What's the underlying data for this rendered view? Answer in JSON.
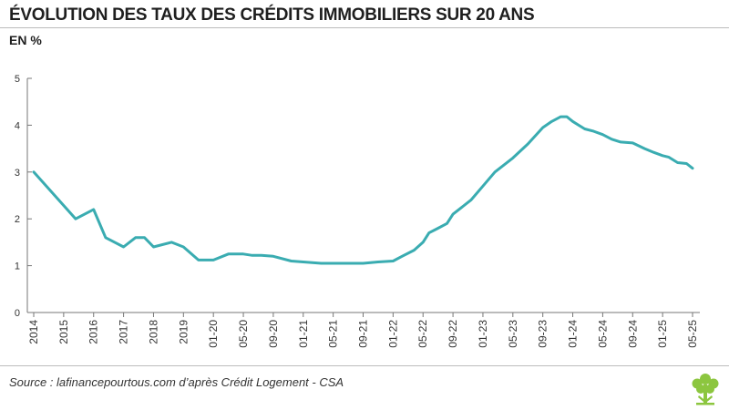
{
  "header": {
    "title": "ÉVOLUTION DES TAUX DES CRÉDITS IMMOBILIERS SUR 20 ANS",
    "unit": "EN %"
  },
  "footer": {
    "source": "Source : lafinancepourtous.com d’après Crédit Logement - CSA",
    "logo_icon": "tree-logo-icon"
  },
  "colors": {
    "line": "#3aacb1",
    "axis": "#777777",
    "logo": "#8cc63f"
  },
  "chart_data": {
    "type": "line",
    "title": "ÉVOLUTION DES TAUX DES CRÉDITS IMMOBILIERS SUR 20 ANS",
    "ylabel": "EN %",
    "ylim": [
      0,
      5
    ],
    "yticks": [
      0,
      1,
      2,
      3,
      4,
      5
    ],
    "grid": false,
    "x_ticks": [
      "2014",
      "2015",
      "2016",
      "2017",
      "2018",
      "2019",
      "01-20",
      "05-20",
      "09-20",
      "01-21",
      "05-21",
      "09-21",
      "01-22",
      "05-22",
      "09-22",
      "01-23",
      "05-23",
      "09-23",
      "01-24",
      "05-24",
      "09-24",
      "01-25",
      "05-25"
    ],
    "series": [
      {
        "x": [
          0,
          1.4,
          2.0,
          2.4,
          3.0,
          3.4,
          3.7,
          4.0,
          4.6,
          5.0,
          5.5,
          6.0,
          6.5,
          7.0,
          7.3,
          7.6,
          8.0,
          8.6,
          9.0,
          9.6,
          10.0,
          10.5,
          11.0,
          11.5,
          12.0,
          12.3,
          12.7,
          13.0,
          13.2,
          13.5,
          13.8,
          14.0,
          14.3,
          14.6,
          15.0,
          15.4,
          16.0,
          16.5,
          17.0,
          17.3,
          17.6,
          17.8,
          18.0,
          18.4,
          18.7,
          19.0,
          19.3,
          19.6,
          20.0,
          20.4,
          20.7,
          21.0,
          21.2,
          21.5,
          21.8,
          22.0
        ],
        "values": [
          3.0,
          2.0,
          2.2,
          1.6,
          1.4,
          1.6,
          1.6,
          1.4,
          1.5,
          1.4,
          1.12,
          1.12,
          1.25,
          1.25,
          1.22,
          1.22,
          1.2,
          1.1,
          1.08,
          1.05,
          1.05,
          1.05,
          1.05,
          1.08,
          1.1,
          1.2,
          1.33,
          1.5,
          1.7,
          1.8,
          1.9,
          2.1,
          2.25,
          2.4,
          2.7,
          3.0,
          3.3,
          3.6,
          3.95,
          4.08,
          4.18,
          4.18,
          4.08,
          3.92,
          3.87,
          3.8,
          3.7,
          3.64,
          3.62,
          3.5,
          3.42,
          3.35,
          3.32,
          3.2,
          3.18,
          3.08
        ]
      }
    ]
  }
}
